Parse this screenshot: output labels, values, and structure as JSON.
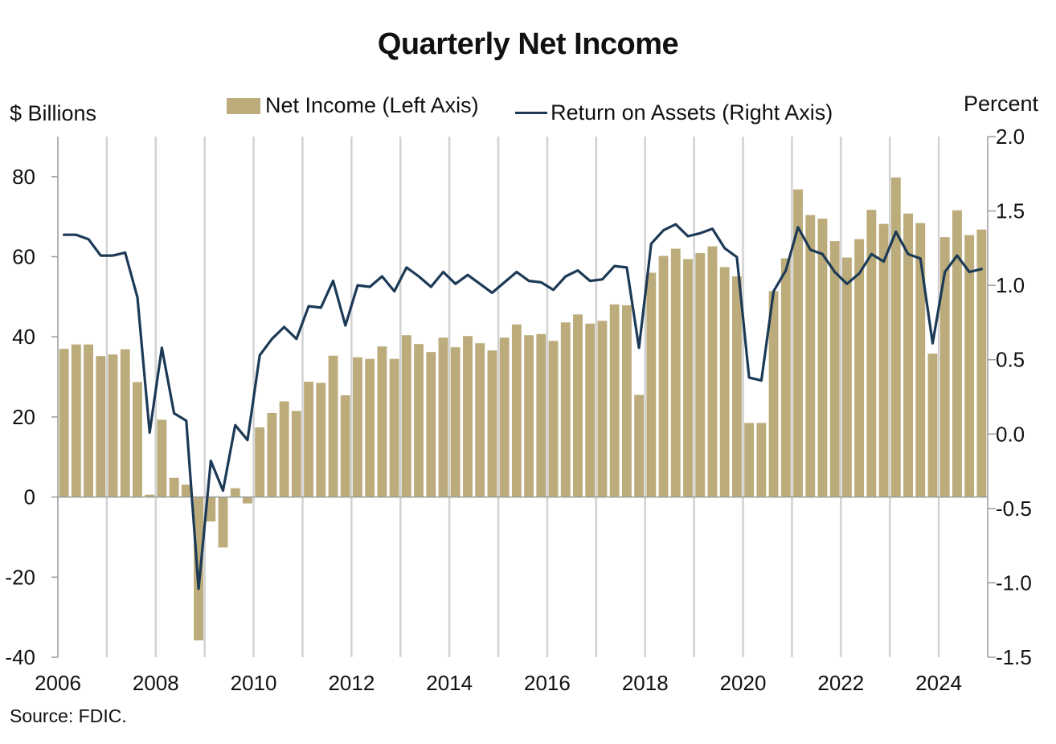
{
  "chart_data": {
    "type": "bar",
    "title": "Quarterly Net Income",
    "left_axis_label": "$ Billions",
    "right_axis_label": "Percent",
    "source": "Source: FDIC.",
    "x_tick_labels": [
      "2006",
      "2008",
      "2010",
      "2012",
      "2014",
      "2016",
      "2018",
      "2020",
      "2022",
      "2024"
    ],
    "y_left": {
      "ylim": [
        -40,
        90
      ],
      "ticks": [
        -40,
        -20,
        0,
        20,
        40,
        60,
        80
      ],
      "tick_labels": [
        "-40",
        "-20",
        "0",
        "20",
        "40",
        "60",
        "80"
      ]
    },
    "y_right": {
      "ylim": [
        -1.5,
        2.0
      ],
      "ticks": [
        -1.5,
        -1.0,
        -0.5,
        0.0,
        0.5,
        1.0,
        1.5,
        2.0
      ],
      "tick_labels": [
        "-1.5",
        "-1.0",
        "-0.5",
        "0.0",
        "0.5",
        "1.0",
        "1.5",
        "2.0"
      ]
    },
    "legend_position": "top",
    "grid": "vertical year separators",
    "start_year": 2006,
    "series": [
      {
        "name": "Net Income (Left Axis)",
        "type": "bar",
        "axis": "left",
        "color": "#bcac7b",
        "values": [
          37.0,
          38.1,
          38.1,
          35.2,
          35.6,
          36.9,
          28.7,
          0.6,
          19.3,
          4.8,
          3.1,
          -35.8,
          -6.1,
          -12.6,
          2.2,
          -1.6,
          17.4,
          21.0,
          23.9,
          21.5,
          28.8,
          28.5,
          35.3,
          25.4,
          34.9,
          34.5,
          37.6,
          34.5,
          40.4,
          38.2,
          36.2,
          39.8,
          37.4,
          40.2,
          38.4,
          36.6,
          39.8,
          43.1,
          40.4,
          40.7,
          39.0,
          43.6,
          45.6,
          43.3,
          44.0,
          48.1,
          47.9,
          25.5,
          56.0,
          60.2,
          62.0,
          59.4,
          60.9,
          62.6,
          57.4,
          55.1,
          18.5,
          18.5,
          51.4,
          59.6,
          76.8,
          70.4,
          69.5,
          63.9,
          59.8,
          64.4,
          71.7,
          68.2,
          79.8,
          70.8,
          68.4,
          35.8,
          64.9,
          71.6,
          65.4,
          66.8
        ]
      },
      {
        "name": "Return on Assets (Right Axis)",
        "type": "line",
        "axis": "right",
        "color": "#1c3a56",
        "values": [
          1.34,
          1.34,
          1.31,
          1.2,
          1.2,
          1.22,
          0.92,
          0.01,
          0.58,
          0.14,
          0.09,
          -1.04,
          -0.18,
          -0.38,
          0.06,
          -0.04,
          0.53,
          0.64,
          0.72,
          0.64,
          0.86,
          0.85,
          1.03,
          0.73,
          1.0,
          0.99,
          1.06,
          0.96,
          1.12,
          1.06,
          0.99,
          1.09,
          1.01,
          1.07,
          1.01,
          0.95,
          1.02,
          1.09,
          1.03,
          1.02,
          0.97,
          1.06,
          1.1,
          1.03,
          1.04,
          1.13,
          1.12,
          0.58,
          1.28,
          1.37,
          1.41,
          1.33,
          1.35,
          1.38,
          1.25,
          1.19,
          0.38,
          0.36,
          0.96,
          1.1,
          1.39,
          1.24,
          1.21,
          1.09,
          1.01,
          1.08,
          1.21,
          1.16,
          1.36,
          1.21,
          1.18,
          0.61,
          1.09,
          1.2,
          1.09,
          1.11
        ]
      }
    ]
  }
}
